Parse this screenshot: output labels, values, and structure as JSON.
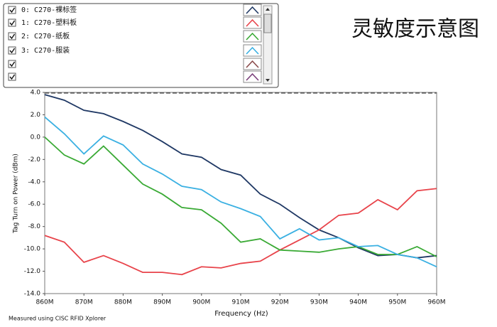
{
  "chart_data": {
    "type": "line",
    "title": "灵敏度示意图",
    "x_label": "Frequency (Hz)",
    "y_label": "Tag Turn on Power (dBm)",
    "footer": "Measured using CISC RFID Xplorer",
    "x": [
      860,
      865,
      870,
      875,
      880,
      885,
      890,
      895,
      900,
      905,
      910,
      915,
      920,
      925,
      930,
      935,
      940,
      945,
      950,
      955,
      960
    ],
    "series": [
      {
        "name": "0: C270-裸标签",
        "color": "#1f3864",
        "values": [
          3.8,
          3.3,
          2.4,
          2.1,
          1.4,
          0.6,
          -0.4,
          -1.5,
          -1.8,
          -2.9,
          -3.4,
          -5.1,
          -6.0,
          -7.2,
          -8.3,
          -9.0,
          -9.9,
          -10.6,
          -10.5,
          -10.8,
          -10.6
        ]
      },
      {
        "name": "1: C270-塑料板",
        "color": "#e8434a",
        "values": [
          -8.8,
          -9.4,
          -11.2,
          -10.6,
          -11.3,
          -12.1,
          -12.1,
          -12.3,
          -11.6,
          -11.7,
          -11.3,
          -11.1,
          -10.1,
          -9.2,
          -8.3,
          -7.0,
          -6.8,
          -5.6,
          -6.5,
          -4.8,
          -4.6
        ]
      },
      {
        "name": "2: C270-纸板",
        "color": "#3aaa35",
        "values": [
          0.0,
          -1.6,
          -2.4,
          -0.8,
          -2.5,
          -4.2,
          -5.1,
          -6.3,
          -6.5,
          -7.7,
          -9.4,
          -9.1,
          -10.1,
          -10.2,
          -10.3,
          -10.0,
          -9.8,
          -10.5,
          -10.5,
          -9.8,
          -10.7
        ]
      },
      {
        "name": "3: C270-服装",
        "color": "#3ab0e2",
        "values": [
          1.8,
          0.3,
          -1.5,
          0.1,
          -0.7,
          -2.4,
          -3.3,
          -4.4,
          -4.7,
          -5.8,
          -6.4,
          -7.1,
          -9.1,
          -8.2,
          -9.2,
          -9.0,
          -9.8,
          -9.7,
          -10.5,
          -10.8,
          -11.6
        ]
      }
    ],
    "xlim": [
      860,
      960
    ],
    "xticks": [
      {
        "value": 860,
        "label": "860M"
      },
      {
        "value": 870,
        "label": "870M"
      },
      {
        "value": 880,
        "label": "880M"
      },
      {
        "value": 890,
        "label": "890M"
      },
      {
        "value": 900,
        "label": "900M"
      },
      {
        "value": 910,
        "label": "910M"
      },
      {
        "value": 920,
        "label": "920M"
      },
      {
        "value": 930,
        "label": "930M"
      },
      {
        "value": 940,
        "label": "940M"
      },
      {
        "value": 950,
        "label": "950M"
      },
      {
        "value": 960,
        "label": "960M"
      }
    ],
    "ylim": [
      -14,
      4
    ],
    "yticks": [
      {
        "value": 4,
        "label": "4.0"
      },
      {
        "value": 2,
        "label": "2.0"
      },
      {
        "value": 0,
        "label": "0.0"
      },
      {
        "value": -2,
        "label": "-2.0"
      },
      {
        "value": -4,
        "label": "-4.0"
      },
      {
        "value": -6,
        "label": "-6.0"
      },
      {
        "value": -8,
        "label": "-8.0"
      },
      {
        "value": -10,
        "label": "-10.0"
      },
      {
        "value": -12,
        "label": "-12.0"
      },
      {
        "value": -14,
        "label": "-14.0"
      }
    ],
    "grid": true
  }
}
